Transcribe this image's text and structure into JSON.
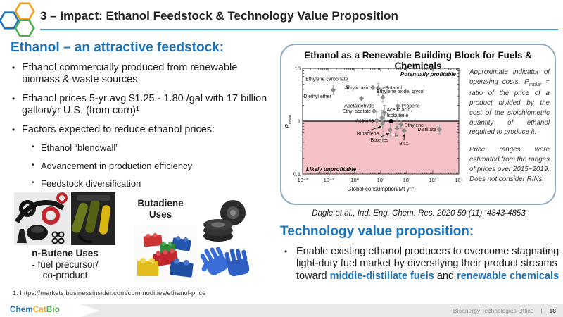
{
  "slide": {
    "title": "3 – Impact:  Ethanol Feedstock & Technology Value Proposition",
    "footnote": "1. https://markets.businessinsider.com/commodities/ethanol-price",
    "footer": {
      "brand_chem": "Chem",
      "brand_cat": "Cat",
      "brand_bio": "Bio",
      "office": "Bioenergy Technologies Office",
      "divider": "|",
      "page_number": "18"
    }
  },
  "colors": {
    "accent_blue": "#1b75bc",
    "underline_blue": "#3ba1d9",
    "brand_orange": "#f5a31c",
    "brand_green": "#4cae4c",
    "unprofitable_pink": "#f6c2c7",
    "point_gray": "#8c8c8c"
  },
  "left": {
    "heading": "Ethanol – an attractive feedstock:",
    "bullets": [
      "Ethanol commercially produced from renewable biomass & waste sources",
      "Ethanol prices 5-yr avg $1.25 - 1.80 /gal with 17 billion gallon/yr U.S. (from corn)¹",
      "Factors expected to reduce ethanol prices:"
    ],
    "sub_bullets": [
      "Ethanol “blendwall”",
      "Advancement in production efficiency",
      "Feedstock diversification"
    ],
    "captions": {
      "n_butene_title": "n-Butene Uses",
      "n_butene_line2": "- fuel precursor/",
      "n_butene_line3": "co-product",
      "butadiene_line1": "Butadiene",
      "butadiene_line2": "Uses"
    }
  },
  "right": {
    "box_title": "Ethanol as a Renewable Building Block for Fuels & Chemicals",
    "note_p1_a": "Approximate indicator of operating costs. P",
    "note_p1_sub": "molar",
    "note_p1_b": " = ratio of the price of a product divided by the cost of the stoichiometric quantity of ethanol required to produce it.",
    "note_p2": "Price ranges were estimated from the ranges of prices over 2015−2019. Does not consider RINs.",
    "citation": "Dagle et al., Ind. Eng. Chem. Res. 2020 59 (11), 4843-4853",
    "tech_heading": "Technology value proposition:",
    "tech_bullet": {
      "part1": "Enable existing ethanol producers to overcome stagnating light-duty fuel market by diversifying their product streams toward ",
      "highlight1": "middle-distillate fuels",
      "part2": " and ",
      "highlight2": "renewable chemicals"
    }
  },
  "chart_data": {
    "type": "scatter",
    "title": "Ethanol as a Renewable Building Block for Fuels & Chemicals",
    "xlabel": "Global consumption/Mt y⁻¹",
    "ylabel_main": "P",
    "ylabel_sub": "molar",
    "x_scale": "log",
    "y_scale": "log",
    "xlim": [
      0.01,
      10000
    ],
    "ylim": [
      0.1,
      10
    ],
    "x_tick_labels": [
      "10⁻²",
      "10⁻¹",
      "10⁰",
      "10¹",
      "10²",
      "10³",
      "10⁴"
    ],
    "y_tick_labels": [
      "10",
      "1",
      "0.1"
    ],
    "y_tick_values": [
      10,
      1,
      0.1
    ],
    "grid": false,
    "regions": {
      "boundary": 1,
      "profitable_label": "Potentially profitable",
      "unprofitable_label": "Likely unprofitable",
      "unprofitable_color": "#f6c2c7"
    },
    "ethanol_marker": {
      "x": 25,
      "y": 1.0
    },
    "points": [
      {
        "name": "Ethylene carbonate",
        "x": 0.55,
        "y": 4.5,
        "err": [
          3.6,
          5.6
        ],
        "label_x": 0.013,
        "label_y": 6.3,
        "anchor": "start"
      },
      {
        "name": "Diethyl ether",
        "x": 0.15,
        "y": 3.9,
        "err": [
          3.2,
          4.8
        ],
        "label_x": 0.011,
        "label_y": 2.95,
        "anchor": "start"
      },
      {
        "name": "Acrylic acid",
        "x": 5,
        "y": 4.3,
        "label_x": 3.8,
        "label_y": 4.3,
        "anchor": "end"
      },
      {
        "name": "n-Butanol",
        "x": 8,
        "y": 4.2,
        "err": [
          3.1,
          5.2
        ],
        "label_x": 10,
        "label_y": 4.3,
        "anchor": "start"
      },
      {
        "name": "Acetaldehyde",
        "x": 1.8,
        "y": 2.7,
        "label_x": 1.5,
        "label_y": 1.95,
        "anchor": "middle"
      },
      {
        "name": "Ethylene oxide, glycol",
        "x": 12,
        "y": 2.85,
        "err": [
          2.3,
          3.5
        ],
        "label_x": 7,
        "label_y": 3.7,
        "anchor": "start"
      },
      {
        "name": "Propene",
        "x": 45,
        "y": 1.95,
        "err": [
          1.6,
          2.4
        ],
        "label_x": 62,
        "label_y": 1.95,
        "anchor": "start"
      },
      {
        "name": "Ethyl acetate",
        "x": 5.5,
        "y": 1.55,
        "label_x": 4.2,
        "label_y": 1.55,
        "anchor": "end"
      },
      {
        "name": "Acetic acid,",
        "x": 14,
        "y": 1.45,
        "err": [
          1.05,
          2.0
        ],
        "label_x": 17,
        "label_y": 1.66,
        "anchor": "start"
      },
      {
        "name": "Isobutene",
        "x": 11,
        "y": 1.15,
        "err": [
          0.8,
          1.6
        ],
        "label_x": 17,
        "label_y": 1.3,
        "anchor": "start"
      },
      {
        "name": "Acetone",
        "x": 7,
        "y": 1.03,
        "err": [
          0.72,
          1.5
        ],
        "label_x": 5.5,
        "label_y": 1.03,
        "anchor": "end"
      },
      {
        "name": "Ethylene",
        "x": 60,
        "y": 0.87,
        "err": [
          0.72,
          1.05
        ],
        "label_x": 82,
        "label_y": 0.84,
        "anchor": "start"
      },
      {
        "name": "H₂",
        "x": 42,
        "y": 0.73,
        "err": [
          0.5,
          1.15
        ],
        "label_x": 36,
        "label_y": 0.55,
        "anchor": "middle"
      },
      {
        "name": "Butenes",
        "x": 23,
        "y": 0.68,
        "err": [
          0.5,
          0.95
        ],
        "label_x": 9,
        "label_y": 0.44,
        "anchor": "middle",
        "arrow": true
      },
      {
        "name": "Butadiene",
        "x": 12,
        "y": 0.93,
        "err": [
          0.45,
          1.6
        ],
        "label_x": 3.2,
        "label_y": 0.58,
        "anchor": "middle",
        "arrow": true
      },
      {
        "name": "BTX",
        "x": 80,
        "y": 0.66,
        "label_x": 78,
        "label_y": 0.38,
        "anchor": "middle",
        "arrow": true
      },
      {
        "name": "Distillate",
        "x": 1800,
        "y": 0.7,
        "err": [
          0.58,
          0.85
        ],
        "label_x": 1350,
        "label_y": 0.7,
        "anchor": "end"
      }
    ]
  }
}
